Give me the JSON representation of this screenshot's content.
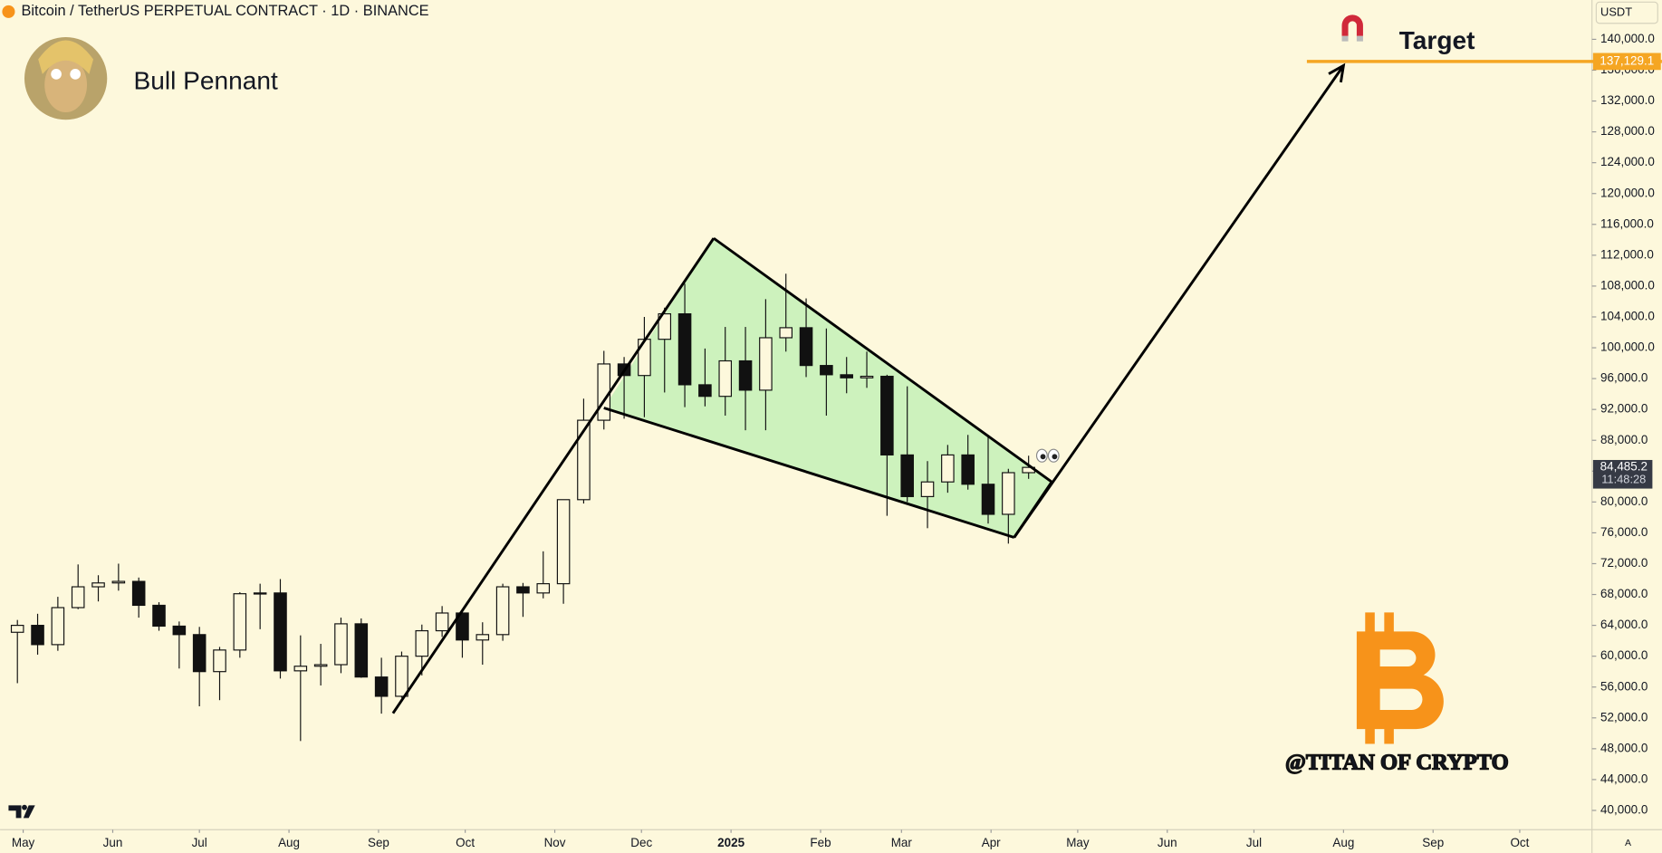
{
  "chart_data": {
    "type": "candlestick",
    "title": "Bitcoin / TetherUS PERPETUAL CONTRACT · 1D · BINANCE",
    "currency": "USDT",
    "scale_mode": "A",
    "pattern_label": "Bull Pennant",
    "target_label": "Target",
    "watermark": "@TITAN OF CRYPTO",
    "x": [
      "2024-04-29",
      "2024-05-06",
      "2024-05-13",
      "2024-05-20",
      "2024-05-27",
      "2024-06-03",
      "2024-06-10",
      "2024-06-17",
      "2024-06-24",
      "2024-07-01",
      "2024-07-08",
      "2024-07-15",
      "2024-07-22",
      "2024-07-29",
      "2024-08-05",
      "2024-08-12",
      "2024-08-19",
      "2024-08-26",
      "2024-09-02",
      "2024-09-09",
      "2024-09-16",
      "2024-09-23",
      "2024-09-30",
      "2024-10-07",
      "2024-10-14",
      "2024-10-21",
      "2024-10-28",
      "2024-11-04",
      "2024-11-11",
      "2024-11-18",
      "2024-11-25",
      "2024-12-02",
      "2024-12-09",
      "2024-12-16",
      "2024-12-23",
      "2024-12-30",
      "2025-01-06",
      "2025-01-13",
      "2025-01-20",
      "2025-01-27",
      "2025-02-03",
      "2025-02-10",
      "2025-02-17",
      "2025-02-24",
      "2025-03-03",
      "2025-03-10",
      "2025-03-17",
      "2025-03-24",
      "2025-03-31",
      "2025-04-07",
      "2025-04-14"
    ],
    "open": [
      63100,
      64000,
      61500,
      66300,
      69000,
      69500,
      69700,
      66600,
      63900,
      62800,
      58000,
      60800,
      68100,
      68200,
      58100,
      58700,
      58900,
      64200,
      57300,
      54800,
      60000,
      63300,
      65600,
      62100,
      62800,
      69000,
      68200,
      69400,
      80300,
      90600,
      97900,
      96400,
      101100,
      104400,
      95200,
      93700,
      98300,
      94500,
      101300,
      102600,
      97700,
      96500,
      96100,
      96300,
      86100,
      80700,
      82600,
      86100,
      82300,
      78400,
      83800
    ],
    "high": [
      64700,
      65500,
      67700,
      71900,
      70500,
      72000,
      70200,
      67000,
      64500,
      63800,
      61200,
      68300,
      69400,
      70000,
      62700,
      61600,
      65000,
      64900,
      59800,
      60600,
      64100,
      66500,
      66000,
      64400,
      69400,
      69500,
      73600,
      80300,
      93400,
      99600,
      98800,
      104000,
      105200,
      108300,
      99900,
      102700,
      102700,
      106300,
      109600,
      106400,
      102500,
      98800,
      99500,
      96500,
      95000,
      85300,
      87400,
      88700,
      88500,
      84300,
      86000
    ],
    "low": [
      56500,
      60200,
      60700,
      66100,
      67100,
      68500,
      65000,
      63300,
      58400,
      53500,
      54300,
      59800,
      63500,
      57100,
      49000,
      56200,
      57800,
      57200,
      52550,
      54600,
      57500,
      62500,
      59800,
      58900,
      62000,
      65100,
      67500,
      66800,
      79800,
      89400,
      90800,
      91000,
      94200,
      92300,
      92400,
      91200,
      89300,
      89300,
      99500,
      96200,
      91200,
      94100,
      94800,
      78200,
      80000,
      76600,
      81200,
      81600,
      77200,
      74600,
      83000
    ],
    "close": [
      64000,
      61500,
      66300,
      69000,
      69500,
      69700,
      66600,
      63900,
      62800,
      58000,
      60800,
      68100,
      68200,
      58100,
      58700,
      58900,
      64200,
      57300,
      54800,
      60000,
      63300,
      65600,
      62100,
      62800,
      69000,
      68200,
      69400,
      80300,
      90600,
      97900,
      96400,
      101100,
      104400,
      95200,
      93700,
      98300,
      94500,
      101300,
      102600,
      97700,
      96500,
      96100,
      96300,
      86100,
      80700,
      82600,
      86100,
      82300,
      78400,
      83800,
      84485.2
    ],
    "up_color": "#fdf8dc",
    "down_color": "#111111",
    "edge_color": "#111111",
    "xlim": [
      "2024-04-23",
      "2025-10-26"
    ],
    "ylim": [
      37500,
      145100
    ],
    "xticks": [
      {
        "value": "2024-05-01",
        "label": "May"
      },
      {
        "value": "2024-06-01",
        "label": "Jun"
      },
      {
        "value": "2024-07-01",
        "label": "Jul"
      },
      {
        "value": "2024-08-01",
        "label": "Aug"
      },
      {
        "value": "2024-09-01",
        "label": "Sep"
      },
      {
        "value": "2024-10-01",
        "label": "Oct"
      },
      {
        "value": "2024-11-01",
        "label": "Nov"
      },
      {
        "value": "2024-12-01",
        "label": "Dec"
      },
      {
        "value": "2025-01-01",
        "label": "2025"
      },
      {
        "value": "2025-02-01",
        "label": "Feb"
      },
      {
        "value": "2025-03-01",
        "label": "Mar"
      },
      {
        "value": "2025-04-01",
        "label": "Apr"
      },
      {
        "value": "2025-05-01",
        "label": "May"
      },
      {
        "value": "2025-06-01",
        "label": "Jun"
      },
      {
        "value": "2025-07-01",
        "label": "Jul"
      },
      {
        "value": "2025-08-01",
        "label": "Aug"
      },
      {
        "value": "2025-09-01",
        "label": "Sep"
      },
      {
        "value": "2025-10-01",
        "label": "Oct"
      }
    ],
    "yticks": [
      {
        "value": 40000,
        "label": "40,000.0"
      },
      {
        "value": 44000,
        "label": "44,000.0"
      },
      {
        "value": 48000,
        "label": "48,000.0"
      },
      {
        "value": 52000,
        "label": "52,000.0"
      },
      {
        "value": 56000,
        "label": "56,000.0"
      },
      {
        "value": 60000,
        "label": "60,000.0"
      },
      {
        "value": 64000,
        "label": "64,000.0"
      },
      {
        "value": 68000,
        "label": "68,000.0"
      },
      {
        "value": 72000,
        "label": "72,000.0"
      },
      {
        "value": 76000,
        "label": "76,000.0"
      },
      {
        "value": 80000,
        "label": "80,000.0"
      },
      {
        "value": 84000,
        "label": "84,000.0"
      },
      {
        "value": 88000,
        "label": "88,000.0"
      },
      {
        "value": 92000,
        "label": "92,000.0"
      },
      {
        "value": 96000,
        "label": "96,000.0"
      },
      {
        "value": 100000,
        "label": "100,000.0"
      },
      {
        "value": 104000,
        "label": "104,000.0"
      },
      {
        "value": 108000,
        "label": "108,000.0"
      },
      {
        "value": 112000,
        "label": "112,000.0"
      },
      {
        "value": 116000,
        "label": "116,000.0"
      },
      {
        "value": 120000,
        "label": "120,000.0"
      },
      {
        "value": 124000,
        "label": "124,000.0"
      },
      {
        "value": 128000,
        "label": "128,000.0"
      },
      {
        "value": 132000,
        "label": "132,000.0"
      },
      {
        "value": 136000,
        "label": "136,000.0"
      },
      {
        "value": 140000,
        "label": "140,000.0"
      }
    ],
    "grid": false,
    "target": {
      "value": 137129.1,
      "label": "137,129.1",
      "color": "#f5a623"
    },
    "last_price": {
      "value": 84485.2,
      "label": "84,485.2",
      "countdown": "11:48:28"
    },
    "drawings": {
      "pennant_color": "#cdf2bd",
      "pennant": [
        {
          "x": "2024-11-18",
          "y": 92200
        },
        {
          "x": "2024-12-26",
          "y": 114200
        },
        {
          "x": "2025-04-22",
          "y": 82600
        },
        {
          "x": "2025-04-09",
          "y": 75400
        }
      ],
      "flagpole": [
        {
          "x": "2024-09-06",
          "y": 52600
        },
        {
          "x": "2024-12-26",
          "y": 114200
        }
      ],
      "arrow": [
        {
          "x": "2025-04-09",
          "y": 75400
        },
        {
          "x": "2025-08-01",
          "y": 136600
        }
      ]
    }
  }
}
